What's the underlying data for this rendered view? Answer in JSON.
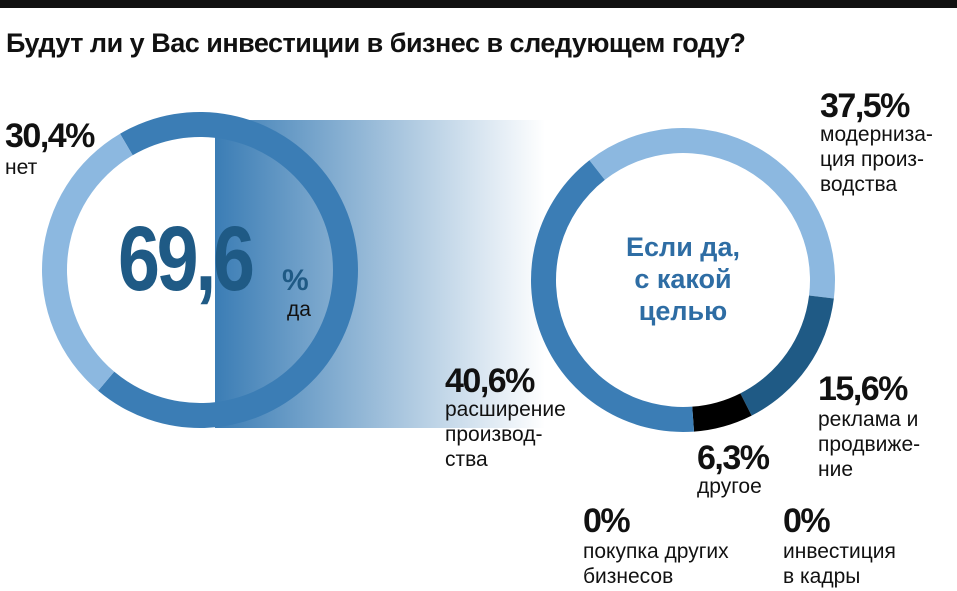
{
  "title": "Будут ли у Вас инвестиции в бизнес в следующем году?",
  "chart_data": [
    {
      "type": "donut",
      "categories": [
        "да",
        "нет"
      ],
      "values": [
        69.6,
        30.4
      ],
      "value_labels": [
        "69,6",
        "30,4%"
      ],
      "center_unit": "%",
      "colors": [
        "#3b7db5",
        "#8cb8e0"
      ]
    },
    {
      "type": "donut",
      "center_text": [
        "Если да,",
        "с какой",
        "целью"
      ],
      "categories": [
        [
          "модерниза-",
          "ция произ-",
          "водства"
        ],
        [
          "реклама и",
          "продвиже-",
          "ние"
        ],
        [
          "другое"
        ],
        [
          "покупка других",
          "бизнесов"
        ],
        [
          "инвестиция",
          "в кадры"
        ],
        [
          "расширение",
          "производ-",
          "ства"
        ]
      ],
      "values": [
        37.5,
        15.6,
        6.3,
        0,
        0,
        40.6
      ],
      "value_labels": [
        "37,5%",
        "15,6%",
        "6,3%",
        "0%",
        "0%",
        "40,6%"
      ],
      "colors": [
        "#8cb8e0",
        "#1f5a85",
        "#000000",
        "#3b7db5",
        "#3b7db5",
        "#3b7db5"
      ]
    }
  ]
}
